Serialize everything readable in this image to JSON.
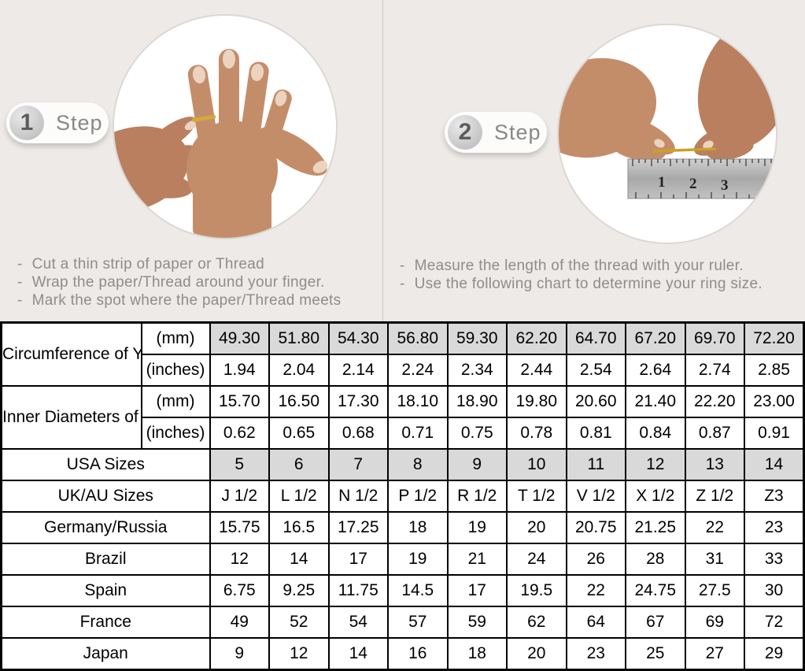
{
  "page": {
    "background": "#edeae7"
  },
  "bullet": "-",
  "colors": {
    "highlight_cell": "#d9d9d9",
    "thread_gold": "#c9a227",
    "badge_text": "#8a8886",
    "instruction_text": "#8f8c89"
  },
  "steps": [
    {
      "number": "1",
      "label": "Step",
      "photo": "hand-with-thread-wrapped-on-finger",
      "instructions": [
        "Cut a thin strip of paper or Thread",
        "Wrap the paper/Thread around your finger.",
        "Mark the spot where the paper/Thread meets"
      ]
    },
    {
      "number": "2",
      "label": "Step",
      "photo": "hands-measuring-thread-on-ruler",
      "ruler_numbers": [
        "1",
        "2",
        "3"
      ],
      "instructions": [
        "Measure the length of the thread with your ruler.",
        "Use the following chart to determine your ring size."
      ]
    }
  ],
  "size_chart": {
    "groups": [
      {
        "label": "Circumference of Your Finger",
        "rows": [
          {
            "unit": "(mm)",
            "highlight": true,
            "values": [
              "49.30",
              "51.80",
              "54.30",
              "56.80",
              "59.30",
              "62.20",
              "64.70",
              "67.20",
              "69.70",
              "72.20"
            ]
          },
          {
            "unit": "(inches)",
            "highlight": false,
            "values": [
              "1.94",
              "2.04",
              "2.14",
              "2.24",
              "2.34",
              "2.44",
              "2.54",
              "2.64",
              "2.74",
              "2.85"
            ]
          }
        ]
      },
      {
        "label": "Inner Diameters of Rings",
        "rows": [
          {
            "unit": "(mm)",
            "highlight": false,
            "values": [
              "15.70",
              "16.50",
              "17.30",
              "18.10",
              "18.90",
              "19.80",
              "20.60",
              "21.40",
              "22.20",
              "23.00"
            ]
          },
          {
            "unit": "(inches)",
            "highlight": false,
            "values": [
              "0.62",
              "0.65",
              "0.68",
              "0.71",
              "0.75",
              "0.78",
              "0.81",
              "0.84",
              "0.87",
              "0.91"
            ]
          }
        ]
      }
    ],
    "regions": [
      {
        "label": "USA Sizes",
        "highlight": true,
        "values": [
          "5",
          "6",
          "7",
          "8",
          "9",
          "10",
          "11",
          "12",
          "13",
          "14"
        ]
      },
      {
        "label": "UK/AU Sizes",
        "highlight": false,
        "values": [
          "J 1/2",
          "L 1/2",
          "N 1/2",
          "P 1/2",
          "R 1/2",
          "T 1/2",
          "V 1/2",
          "X 1/2",
          "Z 1/2",
          "Z3"
        ]
      },
      {
        "label": "Germany/Russia",
        "highlight": false,
        "values": [
          "15.75",
          "16.5",
          "17.25",
          "18",
          "19",
          "20",
          "20.75",
          "21.25",
          "22",
          "23"
        ]
      },
      {
        "label": "Brazil",
        "highlight": false,
        "values": [
          "12",
          "14",
          "17",
          "19",
          "21",
          "24",
          "26",
          "28",
          "31",
          "33"
        ]
      },
      {
        "label": "Spain",
        "highlight": false,
        "values": [
          "6.75",
          "9.25",
          "11.75",
          "14.5",
          "17",
          "19.5",
          "22",
          "24.75",
          "27.5",
          "30"
        ]
      },
      {
        "label": "France",
        "highlight": false,
        "values": [
          "49",
          "52",
          "54",
          "57",
          "59",
          "62",
          "64",
          "67",
          "69",
          "72"
        ]
      },
      {
        "label": "Japan",
        "highlight": false,
        "values": [
          "9",
          "12",
          "14",
          "16",
          "18",
          "20",
          "23",
          "25",
          "27",
          "29"
        ]
      }
    ]
  }
}
